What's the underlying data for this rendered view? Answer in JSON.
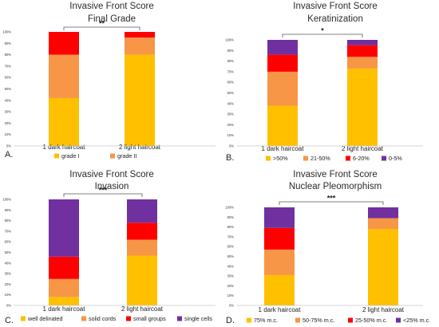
{
  "chart_data": [
    {
      "type": "bar",
      "stacked": true,
      "panel_label": "A.",
      "title": "Invasive Front Score",
      "subtitle": "Final Grade",
      "categories": [
        "1 dark haircoat",
        "2 light haircoat"
      ],
      "ylim": [
        0,
        100
      ],
      "yticks": [
        "0%",
        "10%",
        "20%",
        "30%",
        "40%",
        "50%",
        "60%",
        "70%",
        "80%",
        "90%",
        "100%"
      ],
      "significance": "**",
      "legend_position": "bottom",
      "series": [
        {
          "name": "grade I",
          "color": "#FFC000",
          "values": [
            42,
            80
          ]
        },
        {
          "name": "grade II",
          "color": "#F79646",
          "values": [
            38,
            15
          ]
        },
        {
          "name": "",
          "color": "#FF0000",
          "values": [
            20,
            5
          ]
        }
      ]
    },
    {
      "type": "bar",
      "stacked": true,
      "panel_label": "B.",
      "title": "Invasive Front Score",
      "subtitle": "Keratinization",
      "categories": [
        "1 dark haircoat",
        "2 light haircoat"
      ],
      "ylim": [
        0,
        100
      ],
      "yticks": [
        "0%",
        "10%",
        "20%",
        "30%",
        "40%",
        "50%",
        "60%",
        "70%",
        "80%",
        "90%",
        "100%"
      ],
      "significance": "*",
      "legend_position": "bottom",
      "series": [
        {
          "name": ">50%",
          "color": "#FFC000",
          "values": [
            38,
            73
          ]
        },
        {
          "name": "21-50%",
          "color": "#F79646",
          "values": [
            32,
            11
          ]
        },
        {
          "name": "6-20%",
          "color": "#FF0000",
          "values": [
            16,
            11
          ]
        },
        {
          "name": "0-5%",
          "color": "#7030A0",
          "values": [
            14,
            5
          ]
        }
      ]
    },
    {
      "type": "bar",
      "stacked": true,
      "panel_label": "C.",
      "title": "Invasive Front Score",
      "subtitle": "Invasion",
      "categories": [
        "1 dark haircoat",
        "2 light haircoat"
      ],
      "ylim": [
        0,
        100
      ],
      "yticks": [
        "0%",
        "10%",
        "20%",
        "30%",
        "40%",
        "50%",
        "60%",
        "70%",
        "80%",
        "90%",
        "100%"
      ],
      "significance": "***",
      "legend_position": "bottom",
      "series": [
        {
          "name": "well delinated",
          "color": "#FFC000",
          "values": [
            8,
            47
          ]
        },
        {
          "name": "solid cords",
          "color": "#F79646",
          "values": [
            17,
            15
          ]
        },
        {
          "name": "small groups",
          "color": "#FF0000",
          "values": [
            21,
            16
          ]
        },
        {
          "name": "single cells",
          "color": "#7030A0",
          "values": [
            54,
            22
          ]
        }
      ]
    },
    {
      "type": "bar",
      "stacked": true,
      "panel_label": "D.",
      "title": "Invasive Front Score",
      "subtitle": "Nuclear Pleomorphism",
      "categories": [
        "1 dark haircoat",
        "2 light haircoat"
      ],
      "ylim": [
        0,
        100
      ],
      "yticks": [
        "0%",
        "10%",
        "20%",
        "30%",
        "40%",
        "50%",
        "60%",
        "70%",
        "80%",
        "90%",
        "100%"
      ],
      "significance": "***",
      "legend_position": "bottom",
      "series": [
        {
          "name": "75% m.c.",
          "color": "#FFC000",
          "values": [
            31,
            78
          ]
        },
        {
          "name": "50-75% m.c.",
          "color": "#F79646",
          "values": [
            26,
            11
          ]
        },
        {
          "name": "25-50% m.c.",
          "color": "#FF0000",
          "values": [
            22,
            0
          ]
        },
        {
          "name": "<25% m.c.",
          "color": "#7030A0",
          "values": [
            21,
            11
          ]
        }
      ]
    }
  ]
}
